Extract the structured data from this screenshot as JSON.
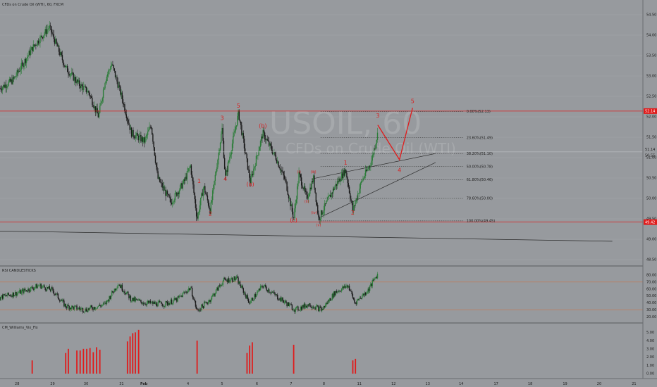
{
  "symbol_title": "CFDs on Crude Oil (WTI), 60, FXCM",
  "watermark": {
    "ticker": "USOIL, 60",
    "name": "CFDs on Crude Oil (WTI)"
  },
  "colors": {
    "background": "#979a9e",
    "up": "#2d7d3a",
    "down": "#1b1b1b",
    "red": "#e01b1b",
    "rsi_line": "#d4a06a"
  },
  "price_axis": {
    "ticks": [
      "54.50",
      "54.00",
      "53.50",
      "53.00",
      "52.50",
      "52.00",
      "51.50",
      "51.00",
      "50.50",
      "50.00",
      "49.50",
      "49.00",
      "48.50"
    ],
    "badge_upper": "52.14",
    "badge_lower": "49.42",
    "current_a": "51.14",
    "current_b": "50.55"
  },
  "fib_levels": [
    {
      "label": "0.00%(52.13)",
      "price": 52.13
    },
    {
      "label": "23.60%(51.49)",
      "price": 51.49
    },
    {
      "label": "38.20%(51.10)",
      "price": 51.1
    },
    {
      "label": "50.00%(50.78)",
      "price": 50.78
    },
    {
      "label": "61.80%(50.46)",
      "price": 50.46
    },
    {
      "label": "78.60%(50.00)",
      "price": 50.0
    },
    {
      "label": "100.00%(49.45)",
      "price": 49.45
    }
  ],
  "wave_labels": [
    {
      "text": "1",
      "t": 0.303,
      "price": 50.38,
      "size": "lg"
    },
    {
      "text": "2",
      "t": 0.32,
      "price": 49.58,
      "size": "lg"
    },
    {
      "text": "3",
      "t": 0.338,
      "price": 51.92,
      "size": "lg"
    },
    {
      "text": "4",
      "t": 0.343,
      "price": 50.43,
      "size": "lg"
    },
    {
      "text": "5",
      "t": 0.363,
      "price": 52.22,
      "size": "lg"
    },
    {
      "text": "(a)",
      "t": 0.381,
      "price": 50.3,
      "size": "lg"
    },
    {
      "text": "(b)",
      "t": 0.4,
      "price": 51.73,
      "size": "lg"
    },
    {
      "text": "(c)",
      "t": 0.447,
      "price": 49.42,
      "size": "lg"
    },
    {
      "text": "(i)",
      "t": 0.455,
      "price": 50.62,
      "size": "sm"
    },
    {
      "text": "(ii)",
      "t": 0.467,
      "price": 49.9,
      "size": "sm"
    },
    {
      "text": "(iii)",
      "t": 0.477,
      "price": 50.62,
      "size": "sm"
    },
    {
      "text": "(iv)",
      "t": 0.478,
      "price": 49.62,
      "size": "sm"
    },
    {
      "text": "(v)",
      "t": 0.485,
      "price": 49.32,
      "size": "sm"
    },
    {
      "text": "1",
      "t": 0.526,
      "price": 50.83,
      "size": "lg"
    },
    {
      "text": "2",
      "t": 0.537,
      "price": 49.6,
      "size": "lg"
    },
    {
      "text": "3",
      "t": 0.575,
      "price": 51.98,
      "size": "lg"
    },
    {
      "text": "4",
      "t": 0.608,
      "price": 50.65,
      "size": "lg"
    },
    {
      "text": "5",
      "t": 0.628,
      "price": 52.34,
      "size": "lg"
    }
  ],
  "date_axis": [
    "28",
    "29",
    "30",
    "31",
    "Feb",
    "4",
    "5",
    "6",
    "7",
    "8",
    "11",
    "12",
    "13",
    "14",
    "17",
    "18",
    "19",
    "20",
    "21"
  ],
  "rsi": {
    "title": "RSI CANDLESTICKS",
    "ticks": [
      "80.00",
      "70.00",
      "60.00",
      "50.00",
      "40.00",
      "30.00",
      "20.00"
    ],
    "upper": 70,
    "lower": 30
  },
  "vix": {
    "title": "CM_Williams_Vix_Fix",
    "ticks": [
      "5.00",
      "4.00",
      "3.00",
      "2.00",
      "1.00",
      "0.00"
    ]
  },
  "chart_data": [
    {
      "type": "candlestick",
      "title": "CFDs on Crude Oil (WTI), 60, FXCM",
      "ylim": [
        48.25,
        54.75
      ],
      "path": [
        [
          0,
          52.7
        ],
        [
          0.02,
          52.9
        ],
        [
          0.05,
          53.7
        ],
        [
          0.075,
          54.2
        ],
        [
          0.09,
          53.6
        ],
        [
          0.1,
          53.2
        ],
        [
          0.12,
          52.8
        ],
        [
          0.135,
          52.6
        ],
        [
          0.15,
          52.0
        ],
        [
          0.16,
          52.9
        ],
        [
          0.17,
          53.3
        ],
        [
          0.185,
          52.5
        ],
        [
          0.2,
          51.6
        ],
        [
          0.22,
          51.4
        ],
        [
          0.23,
          51.8
        ],
        [
          0.24,
          50.5
        ],
        [
          0.26,
          49.9
        ],
        [
          0.28,
          50.4
        ],
        [
          0.29,
          50.8
        ],
        [
          0.3,
          49.5
        ],
        [
          0.31,
          50.3
        ],
        [
          0.32,
          49.7
        ],
        [
          0.338,
          51.7
        ],
        [
          0.343,
          50.5
        ],
        [
          0.363,
          52.1
        ],
        [
          0.381,
          50.4
        ],
        [
          0.4,
          51.6
        ],
        [
          0.42,
          51.0
        ],
        [
          0.435,
          50.4
        ],
        [
          0.447,
          49.5
        ],
        [
          0.455,
          50.6
        ],
        [
          0.467,
          50.0
        ],
        [
          0.477,
          50.5
        ],
        [
          0.485,
          49.5
        ],
        [
          0.51,
          50.3
        ],
        [
          0.526,
          50.7
        ],
        [
          0.537,
          49.7
        ],
        [
          0.55,
          50.4
        ],
        [
          0.565,
          50.9
        ],
        [
          0.575,
          51.6
        ]
      ],
      "projection": [
        [
          0.575,
          51.8
        ],
        [
          0.608,
          50.95
        ],
        [
          0.628,
          52.22
        ]
      ],
      "horizontal_lines": [
        52.14,
        49.42,
        51.14
      ],
      "trendlines": [
        [
          [
            0.475,
            50.48
          ],
          [
            0.663,
            51.1
          ]
        ],
        [
          [
            0.485,
            49.52
          ],
          [
            0.663,
            50.88
          ]
        ],
        [
          [
            0,
            49.2
          ],
          [
            0.932,
            48.95
          ]
        ]
      ]
    },
    {
      "type": "line",
      "title": "RSI CANDLESTICKS",
      "ylim": [
        15,
        85
      ],
      "levels": [
        70,
        30
      ],
      "path": [
        [
          0,
          48
        ],
        [
          0.03,
          55
        ],
        [
          0.06,
          65
        ],
        [
          0.08,
          58
        ],
        [
          0.1,
          35
        ],
        [
          0.13,
          30
        ],
        [
          0.16,
          38
        ],
        [
          0.18,
          68
        ],
        [
          0.2,
          45
        ],
        [
          0.22,
          40
        ],
        [
          0.25,
          38
        ],
        [
          0.27,
          45
        ],
        [
          0.29,
          62
        ],
        [
          0.3,
          28
        ],
        [
          0.32,
          45
        ],
        [
          0.34,
          72
        ],
        [
          0.36,
          75
        ],
        [
          0.38,
          40
        ],
        [
          0.4,
          65
        ],
        [
          0.42,
          50
        ],
        [
          0.45,
          30
        ],
        [
          0.47,
          38
        ],
        [
          0.49,
          30
        ],
        [
          0.51,
          55
        ],
        [
          0.53,
          65
        ],
        [
          0.54,
          40
        ],
        [
          0.56,
          58
        ],
        [
          0.575,
          82
        ]
      ]
    },
    {
      "type": "bar",
      "title": "CM_Williams_Vix_Fix",
      "ylim": [
        0,
        5.2
      ],
      "bars": [
        [
          0.049,
          1.6
        ],
        [
          0.1,
          2.5
        ],
        [
          0.104,
          3.0
        ],
        [
          0.117,
          2.8
        ],
        [
          0.122,
          2.8
        ],
        [
          0.127,
          3.0
        ],
        [
          0.132,
          3.0
        ],
        [
          0.137,
          3.1
        ],
        [
          0.142,
          2.6
        ],
        [
          0.147,
          3.2
        ],
        [
          0.152,
          2.9
        ],
        [
          0.194,
          3.9
        ],
        [
          0.198,
          4.5
        ],
        [
          0.202,
          4.9
        ],
        [
          0.206,
          5.0
        ],
        [
          0.211,
          5.3
        ],
        [
          0.3,
          4.0
        ],
        [
          0.376,
          2.5
        ],
        [
          0.38,
          3.4
        ],
        [
          0.384,
          3.8
        ],
        [
          0.447,
          3.5
        ],
        [
          0.537,
          1.6
        ],
        [
          0.541,
          1.8
        ]
      ]
    }
  ]
}
